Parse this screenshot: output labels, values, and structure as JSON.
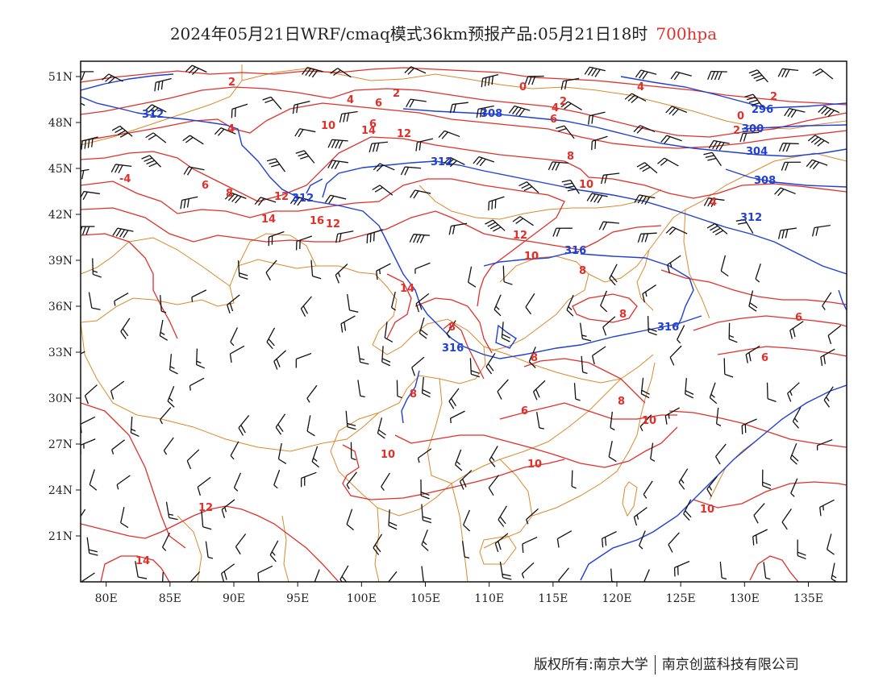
{
  "title": {
    "main": "2024年05月21日WRF/cmaq模式36km预报产品:05月21日18时",
    "level": "700hpa"
  },
  "axes": {
    "lat_labels": [
      "51N",
      "48N",
      "45N",
      "42N",
      "39N",
      "36N",
      "33N",
      "30N",
      "27N",
      "24N",
      "21N"
    ],
    "lon_labels": [
      "80E",
      "85E",
      "90E",
      "95E",
      "100E",
      "105E",
      "110E",
      "115E",
      "120E",
      "125E",
      "130E",
      "135E"
    ],
    "lon_range": [
      78,
      138
    ],
    "lat_range": [
      18,
      52
    ]
  },
  "map_data": {
    "variables": [
      "geopotential height (dagpm)",
      "temperature (°C)",
      "wind barbs"
    ],
    "height_labels": [
      "312",
      "312",
      "308",
      "312",
      "316",
      "316",
      "316",
      "296",
      "300",
      "304",
      "308",
      "312"
    ],
    "temperature_labels": [
      "2",
      "4",
      "6",
      "2",
      "0",
      "2",
      "4",
      "4",
      "6",
      "8",
      "10",
      "6",
      "4",
      "2",
      "0",
      "-4",
      "2",
      "6",
      "8",
      "10",
      "12",
      "14",
      "12",
      "16",
      "14",
      "12",
      "14",
      "10",
      "12",
      "10",
      "8",
      "8",
      "6",
      "6",
      "8",
      "8",
      "10",
      "8",
      "8",
      "6",
      "10",
      "10",
      "12",
      "14",
      "10",
      "4"
    ],
    "colors": {
      "height": "#1f3fd6",
      "temperature": "#e0302a",
      "boundary": "#d98a2b",
      "barb": "#111111"
    }
  },
  "footer": {
    "left": "版权所有:南京大学",
    "right": "南京创蓝科技有限公司"
  }
}
